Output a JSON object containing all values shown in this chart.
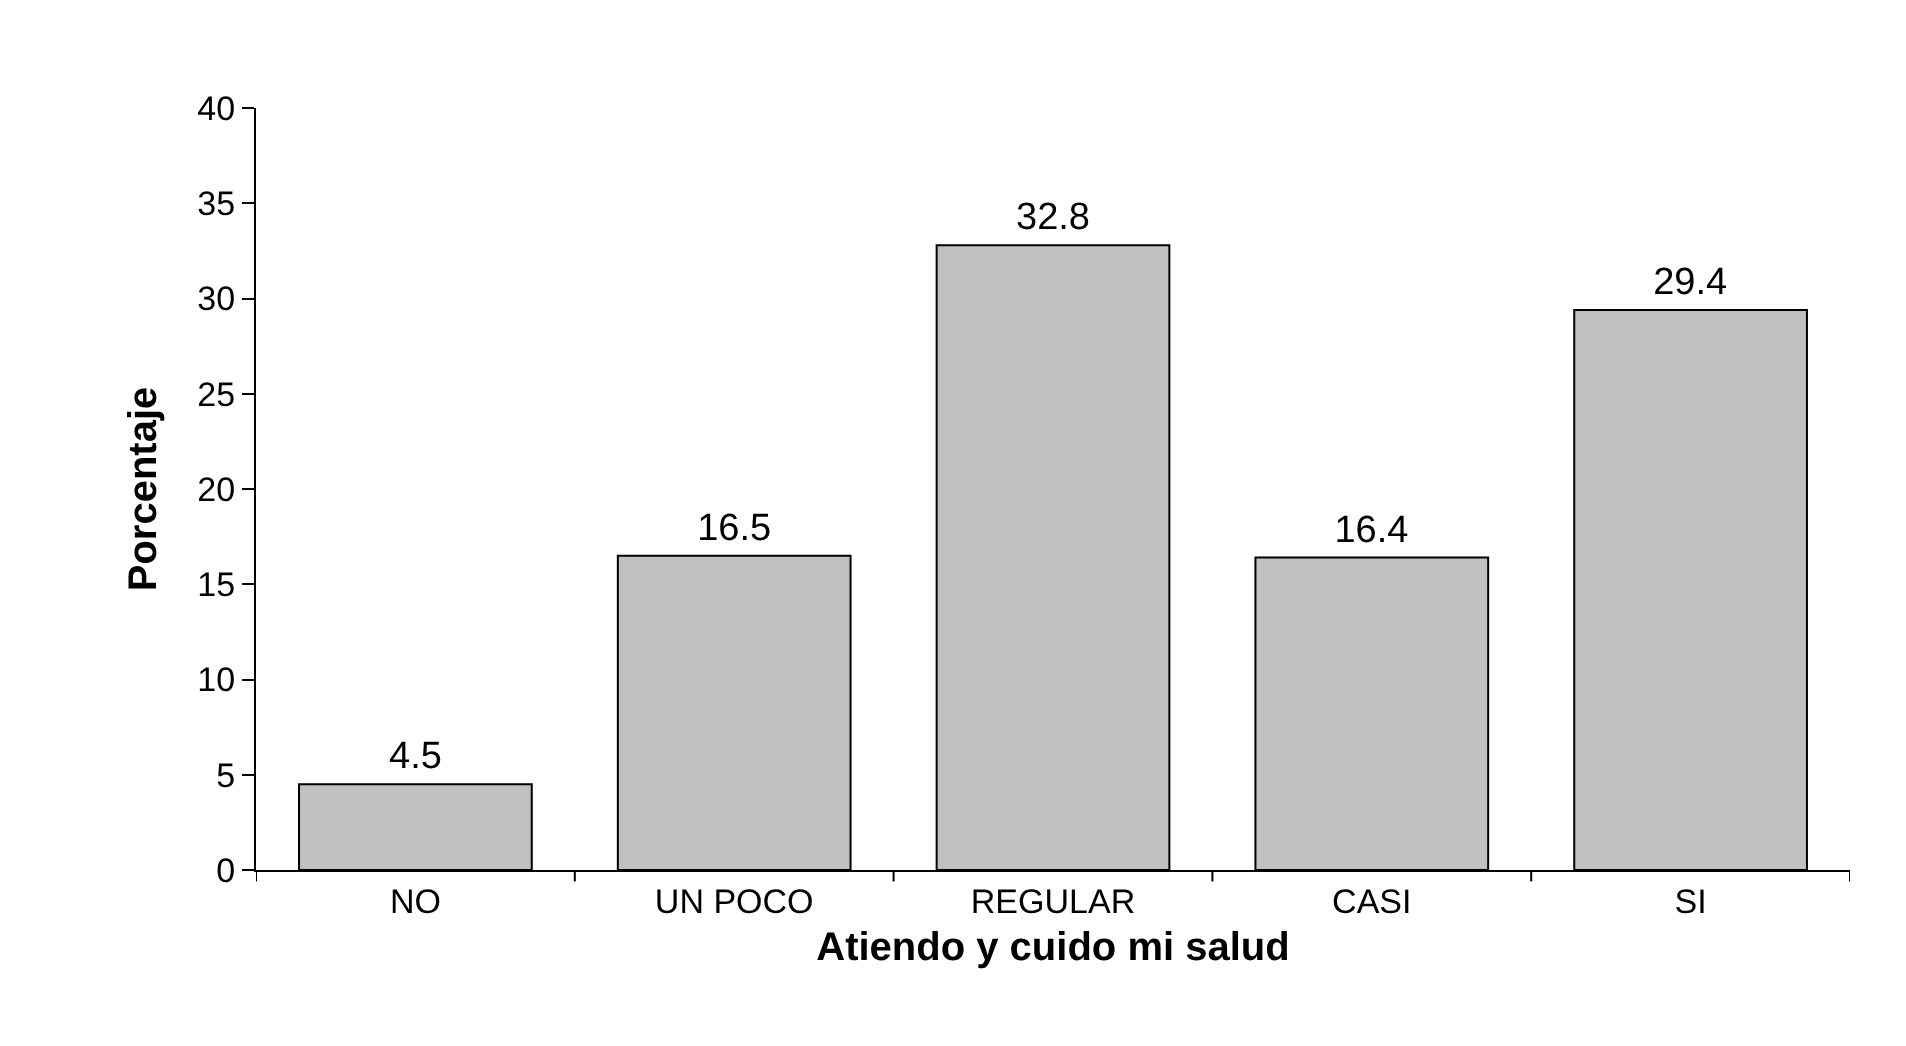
{
  "chart_data": {
    "type": "bar",
    "xlabel": "Atiendo y cuido mi salud",
    "ylabel": "Porcentaje",
    "categories": [
      "NO",
      "UN POCO",
      "REGULAR",
      "CASI",
      "SI"
    ],
    "values": [
      4.5,
      16.5,
      32.8,
      16.4,
      29.4
    ],
    "color": "#c0c0c0",
    "ylim": [
      0,
      40
    ],
    "yticks": [
      0,
      5,
      10,
      15,
      20,
      25,
      30,
      35,
      40
    ],
    "data_labels": true
  }
}
